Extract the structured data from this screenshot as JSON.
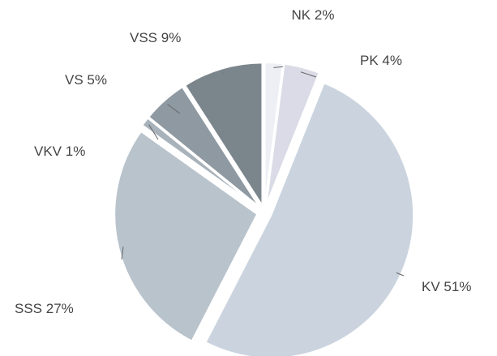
{
  "chart_data": {
    "type": "pie",
    "categories": [
      "NK",
      "PK",
      "KV",
      "SSS",
      "VKV",
      "VS",
      "VSS"
    ],
    "values": [
      2,
      4,
      51,
      27,
      1,
      5,
      9
    ],
    "value_labels": [
      "2%",
      "4%",
      "51%",
      "27%",
      "1%",
      "5%",
      "9%"
    ],
    "colors": [
      "#eeeff4",
      "#dadbe6",
      "#cbd4de",
      "#b9c3cc",
      "#a8b2ba",
      "#8e99a2",
      "#7b858c"
    ]
  }
}
